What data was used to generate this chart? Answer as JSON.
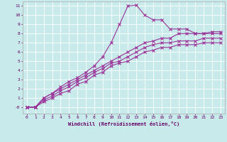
{
  "background_color": "#c8eaea",
  "grid_color": "#ffffff",
  "line_color": "#993399",
  "xlabel": "Windchill (Refroidissement éolien,°C)",
  "xlabel_color": "#660066",
  "tick_color": "#660066",
  "xlim": [
    -0.5,
    23.5
  ],
  "ylim": [
    -0.7,
    11.5
  ],
  "xticks": [
    0,
    1,
    2,
    3,
    4,
    5,
    6,
    7,
    8,
    9,
    10,
    11,
    12,
    13,
    14,
    15,
    16,
    17,
    18,
    19,
    20,
    21,
    22,
    23
  ],
  "yticks": [
    0,
    1,
    2,
    3,
    4,
    5,
    6,
    7,
    8,
    9,
    10,
    11
  ],
  "ytick_labels": [
    "-0",
    "1",
    "2",
    "3",
    "4",
    "5",
    "6",
    "7",
    "8",
    "9",
    "10",
    "11"
  ],
  "line1_x": [
    0,
    1,
    2,
    3,
    4,
    5,
    6,
    7,
    8,
    9,
    10,
    11,
    12,
    13,
    14,
    15,
    16,
    17,
    18,
    19,
    20,
    21,
    22,
    23
  ],
  "line1_y": [
    0,
    0,
    1.0,
    1.5,
    2.2,
    2.8,
    3.2,
    3.8,
    4.5,
    5.5,
    7.0,
    9.0,
    11.0,
    11.1,
    10.0,
    9.5,
    9.5,
    8.5,
    8.5,
    8.5,
    8.0,
    8.0,
    8.0,
    8.0
  ],
  "line2_x": [
    0,
    1,
    2,
    3,
    4,
    5,
    6,
    7,
    8,
    9,
    10,
    11,
    12,
    13,
    14,
    15,
    16,
    17,
    18,
    19,
    20,
    21,
    22,
    23
  ],
  "line2_y": [
    0,
    0,
    1.0,
    1.5,
    2.0,
    2.5,
    3.0,
    3.5,
    4.0,
    4.5,
    5.0,
    5.5,
    6.0,
    6.5,
    7.0,
    7.2,
    7.5,
    7.5,
    8.0,
    8.0,
    8.0,
    8.0,
    8.2,
    8.2
  ],
  "line3_x": [
    0,
    1,
    2,
    3,
    4,
    5,
    6,
    7,
    8,
    9,
    10,
    11,
    12,
    13,
    14,
    15,
    16,
    17,
    18,
    19,
    20,
    21,
    22,
    23
  ],
  "line3_y": [
    0,
    0,
    0.8,
    1.2,
    1.8,
    2.2,
    2.8,
    3.2,
    3.8,
    4.2,
    4.8,
    5.0,
    5.5,
    6.0,
    6.5,
    6.8,
    7.0,
    7.0,
    7.2,
    7.2,
    7.2,
    7.5,
    7.5,
    7.5
  ],
  "line4_x": [
    0,
    1,
    2,
    3,
    4,
    5,
    6,
    7,
    8,
    9,
    10,
    11,
    12,
    13,
    14,
    15,
    16,
    17,
    18,
    19,
    20,
    21,
    22,
    23
  ],
  "line4_y": [
    0,
    0,
    0.6,
    1.0,
    1.5,
    1.8,
    2.5,
    2.8,
    3.5,
    3.8,
    4.5,
    4.8,
    5.0,
    5.5,
    6.0,
    6.2,
    6.5,
    6.5,
    6.8,
    6.8,
    6.8,
    7.0,
    7.0,
    7.0
  ]
}
